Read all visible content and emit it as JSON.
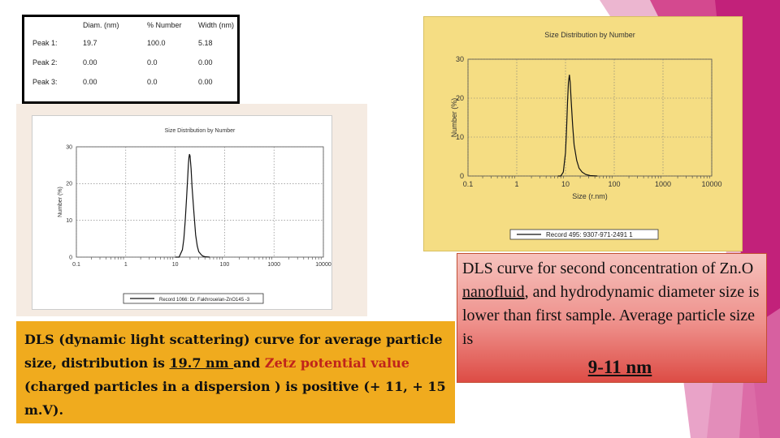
{
  "colors": {
    "caption1_bg": "#f0ab1e",
    "caption2_bg": "#ee8f8a",
    "chart2_panel": "#f5dd83",
    "accent_pink": "#c2217a",
    "zetz_red": "#c0241b"
  },
  "peak_table": {
    "headers": [
      "",
      "Diam. (nm)",
      "% Number",
      "Width (nm)"
    ],
    "rows": [
      [
        "Peak 1:",
        "19.7",
        "100.0",
        "5.18"
      ],
      [
        "Peak 2:",
        "0.00",
        "0.0",
        "0.00"
      ],
      [
        "Peak 3:",
        "0.00",
        "0.0",
        "0.00"
      ]
    ]
  },
  "chart_data": [
    {
      "type": "line",
      "title": "Size Distribution by Number",
      "xlabel": "",
      "ylabel": "Number (%)",
      "x_scale": "log",
      "xlim": [
        0.1,
        10000
      ],
      "ylim": [
        0,
        30
      ],
      "x_ticks": [
        "0.1",
        "1",
        "10",
        "100",
        "1000",
        "10000"
      ],
      "y_ticks": [
        "0",
        "10",
        "20",
        "30"
      ],
      "grid": true,
      "legend": "bottom",
      "series": [
        {
          "name": "Record 1066: Dr. Fakhrouelan-ZnO145 -3",
          "x": [
            10,
            12,
            14,
            15,
            16,
            17,
            18,
            18.5,
            19,
            19.5,
            20,
            21,
            22,
            24,
            26,
            28,
            30,
            33,
            36,
            40,
            50
          ],
          "y": [
            0,
            0,
            2,
            5,
            10,
            16,
            22,
            25,
            27,
            28,
            27.5,
            24,
            19,
            12,
            6,
            3,
            1.5,
            0.8,
            0.3,
            0.1,
            0
          ]
        }
      ]
    },
    {
      "type": "line",
      "title": "Size Distribution by Number",
      "xlabel": "Size (r.nm)",
      "ylabel": "Number (%)",
      "x_scale": "log",
      "xlim": [
        0.1,
        10000
      ],
      "ylim": [
        0,
        30
      ],
      "x_ticks": [
        "0.1",
        "1",
        "10",
        "100",
        "1000",
        "10000"
      ],
      "y_ticks": [
        "0",
        "10",
        "20",
        "30"
      ],
      "grid": true,
      "legend": "bottom",
      "series": [
        {
          "name": "Record 495: 9307-971-2491 1",
          "x": [
            7,
            8,
            9,
            10,
            10.5,
            11,
            11.5,
            12,
            12.5,
            13,
            14,
            15,
            17,
            19,
            22,
            26,
            32,
            45
          ],
          "y": [
            0,
            0,
            1,
            6,
            12,
            19,
            24,
            26,
            24,
            20,
            13,
            8,
            4,
            2,
            1,
            0.4,
            0.1,
            0
          ]
        }
      ]
    }
  ],
  "caption1": {
    "part1": "DLS (dynamic light scattering) curve for average particle size, distribution is ",
    "underlined": "19.7 nm ",
    "part2": "and ",
    "red": "Zetz potential value",
    "part3": " (charged particles in a dispersion ) is positive (+ 11, + 15 m.V)."
  },
  "caption2": {
    "part1": "DLS curve for second  concentration of Zn.O ",
    "underlined": "nanofluid",
    "part2": ", and hydrodynamic diameter size is lower than first sample. Average particle size is",
    "size": "9-11 nm"
  }
}
